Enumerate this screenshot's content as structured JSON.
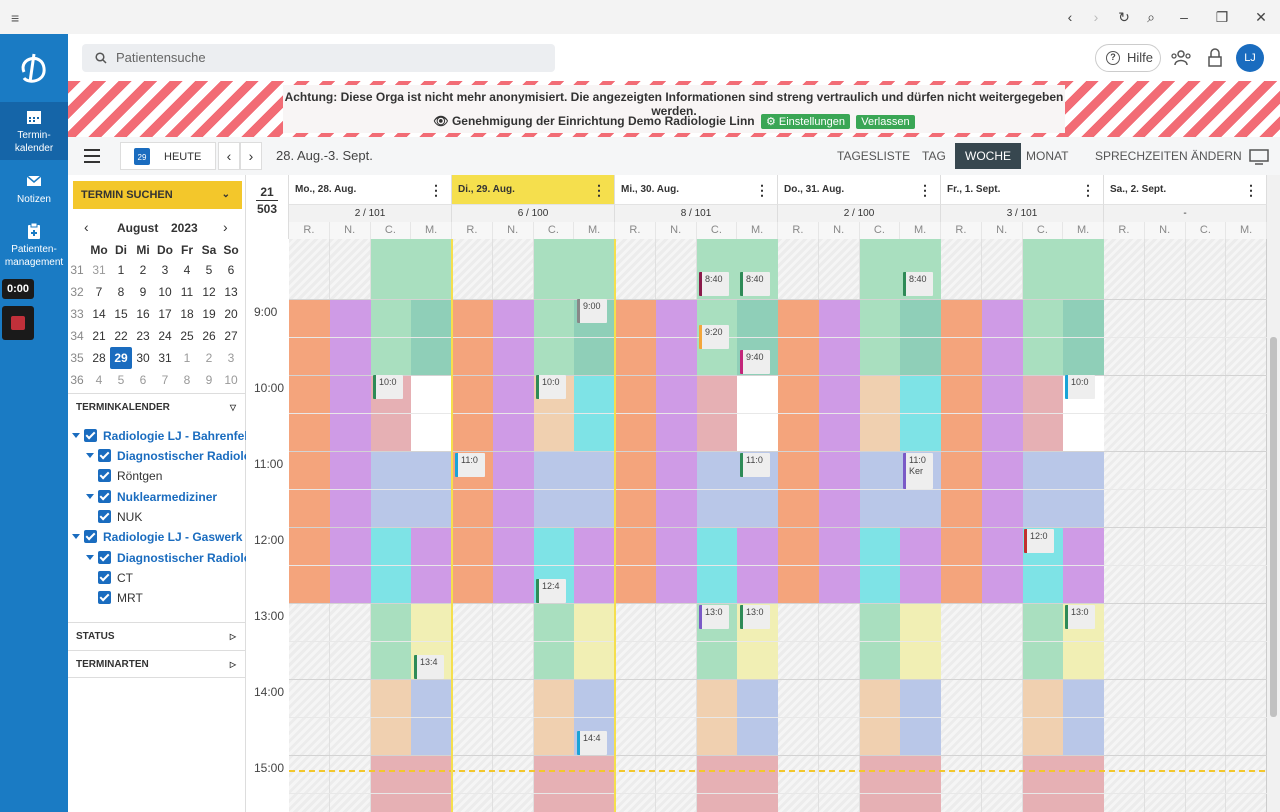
{
  "titlebar": {
    "menu_icon": "hamburger-icon",
    "nav": [
      "‹",
      "›",
      "↻",
      "⌕",
      "–",
      "❐",
      "✕"
    ]
  },
  "nav": {
    "items": [
      {
        "label": "Termin-\nkalender",
        "icon": "calendar-icon"
      },
      {
        "label": "Notizen",
        "icon": "mail-icon"
      },
      {
        "label": "Patienten-\nmanagement",
        "icon": "clipboard-icon"
      }
    ],
    "timer": "0:00"
  },
  "topbar": {
    "search_placeholder": "Patientensuche",
    "help": "Hilfe",
    "avatar": "LJ"
  },
  "banner": {
    "warning": "Achtung: Diese Orga ist nicht mehr anonymisiert. Die angezeigten Informationen sind streng vertraulich und dürfen nicht weitergegeben werden.",
    "approval": "Genehmigung der Einrichtung Demo Radiologie Linn",
    "settings": "Einstellungen",
    "leave": "Verlassen"
  },
  "toolbar": {
    "today_day": "29",
    "today": "HEUTE",
    "range": "28. Aug.-3. Sept.",
    "views": [
      "TAGESLISTE",
      "TAG",
      "WOCHE",
      "MONAT"
    ],
    "active_view": "WOCHE",
    "change_hours": "SPRECHZEITEN ÄNDERN"
  },
  "left": {
    "search_appt": "TERMIN SUCHEN",
    "month": "August",
    "year": "2023",
    "weekdays": [
      "Mo",
      "Di",
      "Mi",
      "Do",
      "Fr",
      "Sa",
      "So"
    ],
    "weeks": [
      [
        "31",
        "31",
        "1",
        "2",
        "3",
        "4",
        "5",
        "6"
      ],
      [
        "32",
        "7",
        "8",
        "9",
        "10",
        "11",
        "12",
        "13"
      ],
      [
        "33",
        "14",
        "15",
        "16",
        "17",
        "18",
        "19",
        "20"
      ],
      [
        "34",
        "21",
        "22",
        "23",
        "24",
        "25",
        "26",
        "27"
      ],
      [
        "35",
        "28",
        "29",
        "30",
        "31",
        "1",
        "2",
        "3"
      ],
      [
        "36",
        "4",
        "5",
        "6",
        "7",
        "8",
        "9",
        "10"
      ]
    ],
    "selected": "29",
    "calendar_section": "TERMINKALENDER",
    "tree": [
      "Radiologie LJ - Bahrenfeld",
      "Diagnostischer Radiologe",
      "Röntgen",
      "Nuklearmediziner",
      "NUK",
      "Radiologie LJ - Gaswerk",
      "Diagnostischer Radiologe",
      "CT",
      "MRT"
    ],
    "status": "STATUS",
    "types": "TERMINARTEN"
  },
  "calendar": {
    "week": "21",
    "count_total": "503",
    "days": [
      {
        "label": "Mo., 28. Aug.",
        "count": "2 / 101"
      },
      {
        "label": "Di., 29. Aug.",
        "count": "6 / 100"
      },
      {
        "label": "Mi., 30. Aug.",
        "count": "8 / 101"
      },
      {
        "label": "Do., 31. Aug.",
        "count": "2 / 100"
      },
      {
        "label": "Fr., 1. Sept.",
        "count": "3 / 101"
      },
      {
        "label": "Sa., 2. Sept.",
        "count": "-"
      }
    ],
    "subcols": [
      "R.",
      "N.",
      "C.",
      "M."
    ],
    "times": [
      "9:00",
      "10:00",
      "11:00",
      "12:00",
      "13:00",
      "14:00",
      "15:00"
    ],
    "events": [
      "10:0",
      "10:0",
      "11:0",
      "12:4",
      "13:4",
      "14:4",
      "9:00",
      "8:40",
      "8:40",
      "9:20",
      "9:40",
      "11:0",
      "13:0",
      "13:0",
      "8:40",
      "11:0",
      "12:0",
      "13:0",
      "10:0"
    ],
    "event_sub": [
      "Ker"
    ]
  }
}
